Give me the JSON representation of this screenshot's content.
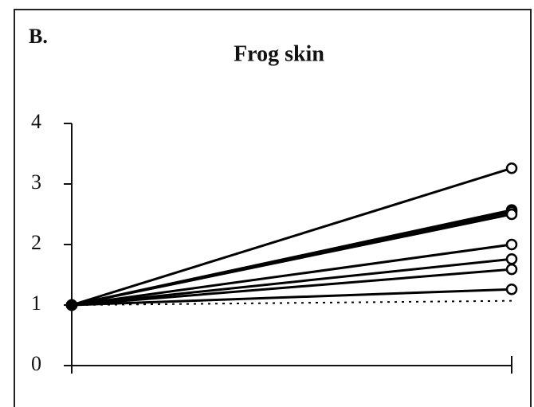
{
  "chart_data": {
    "type": "line",
    "panel_label": "B.",
    "title": "Frog skin",
    "categories": [
      null,
      null
    ],
    "ylim": [
      0,
      4
    ],
    "yticks": [
      0,
      1,
      2,
      3,
      4
    ],
    "series": [
      {
        "color": "#000000",
        "marker": "circle",
        "values": [
          1,
          3.26
        ]
      },
      {
        "color": "#000000",
        "marker": "circle",
        "values": [
          1,
          2.57
        ]
      },
      {
        "color": "#000000",
        "marker": "circle",
        "values": [
          1,
          2.54
        ]
      },
      {
        "color": "#000000",
        "marker": "circle",
        "values": [
          1,
          2.5
        ]
      },
      {
        "color": "#000000",
        "marker": "circle",
        "values": [
          1,
          2.0
        ]
      },
      {
        "color": "#000000",
        "marker": "circle",
        "values": [
          1,
          1.76
        ]
      },
      {
        "color": "#000000",
        "marker": "circle",
        "values": [
          1,
          1.59
        ]
      },
      {
        "color": "#000000",
        "marker": "circle",
        "values": [
          1,
          1.26
        ]
      },
      {
        "color": "#000000",
        "dash": true,
        "values": [
          1,
          1.07
        ]
      }
    ]
  }
}
